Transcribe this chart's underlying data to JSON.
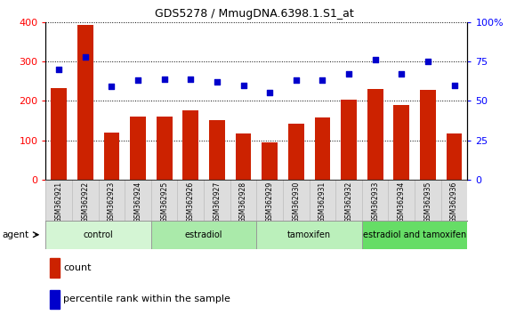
{
  "title": "GDS5278 / MmugDNA.6398.1.S1_at",
  "samples": [
    "GSM362921",
    "GSM362922",
    "GSM362923",
    "GSM362924",
    "GSM362925",
    "GSM362926",
    "GSM362927",
    "GSM362928",
    "GSM362929",
    "GSM362930",
    "GSM362931",
    "GSM362932",
    "GSM362933",
    "GSM362934",
    "GSM362935",
    "GSM362936"
  ],
  "counts": [
    232,
    393,
    120,
    160,
    160,
    175,
    150,
    118,
    95,
    143,
    158,
    203,
    230,
    190,
    228,
    118
  ],
  "percentiles": [
    70,
    78,
    59,
    63,
    64,
    64,
    62,
    60,
    55,
    63,
    63,
    67,
    76,
    67,
    75,
    60
  ],
  "groups": [
    {
      "label": "control",
      "start": 0,
      "end": 4,
      "color": "#d4f5d4"
    },
    {
      "label": "estradiol",
      "start": 4,
      "end": 8,
      "color": "#aaeaaa"
    },
    {
      "label": "tamoxifen",
      "start": 8,
      "end": 12,
      "color": "#bbf0bb"
    },
    {
      "label": "estradiol and tamoxifen",
      "start": 12,
      "end": 16,
      "color": "#66dd66"
    }
  ],
  "bar_color": "#cc2200",
  "dot_color": "#0000cc",
  "left_ylim": [
    0,
    400
  ],
  "right_ylim": [
    0,
    100
  ],
  "left_yticks": [
    0,
    100,
    200,
    300,
    400
  ],
  "right_yticks": [
    0,
    25,
    50,
    75,
    100
  ],
  "right_yticklabels": [
    "0",
    "25",
    "50",
    "75",
    "100%"
  ],
  "background_color": "#ffffff",
  "plot_bg_color": "#ffffff",
  "agent_label": "agent",
  "legend_count_label": "count",
  "legend_pct_label": "percentile rank within the sample"
}
